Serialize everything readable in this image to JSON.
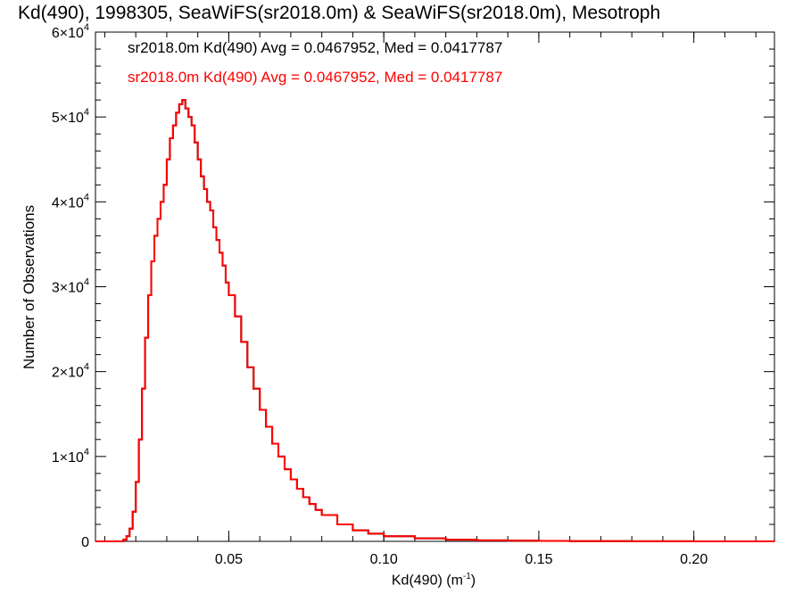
{
  "chart_data": {
    "type": "line",
    "title": "Kd(490), 1998305, SeaWiFS(sr2018.0m) & SeaWiFS(sr2018.0m), Mesotroph",
    "xlabel_base": "Kd(490) (m",
    "xlabel_exp": "-1",
    "xlabel_close": ")",
    "ylabel": "Number of Observations",
    "xlim": [
      0.007,
      0.226
    ],
    "ylim": [
      0,
      60000
    ],
    "x_ticks": [
      0.05,
      0.1,
      0.15,
      0.2
    ],
    "x_tick_labels": [
      "0.05",
      "0.10",
      "0.15",
      "0.20"
    ],
    "y_ticks": [
      0,
      10000,
      20000,
      30000,
      40000,
      50000,
      60000
    ],
    "y_tick_labels": [
      {
        "mantissa": "0",
        "exp": ""
      },
      {
        "mantissa": "1×10",
        "exp": "4"
      },
      {
        "mantissa": "2×10",
        "exp": "4"
      },
      {
        "mantissa": "3×10",
        "exp": "4"
      },
      {
        "mantissa": "4×10",
        "exp": "4"
      },
      {
        "mantissa": "5×10",
        "exp": "4"
      },
      {
        "mantissa": "6×10",
        "exp": "4"
      }
    ],
    "legend": [
      {
        "text": "sr2018.0m Kd(490) Avg = 0.0467952, Med = 0.0417787",
        "color": "#000000"
      },
      {
        "text": "sr2018.0m Kd(490) Avg = 0.0467952, Med = 0.0417787",
        "color": "#ff0000"
      }
    ],
    "series": [
      {
        "color": "#000000",
        "style": "step",
        "x": [
          0.007,
          0.016,
          0.017,
          0.018,
          0.019,
          0.02,
          0.021,
          0.022,
          0.023,
          0.024,
          0.025,
          0.026,
          0.027,
          0.028,
          0.029,
          0.03,
          0.031,
          0.032,
          0.033,
          0.034,
          0.035,
          0.036,
          0.037,
          0.038,
          0.039,
          0.04,
          0.041,
          0.042,
          0.043,
          0.044,
          0.045,
          0.046,
          0.047,
          0.048,
          0.049,
          0.05,
          0.052,
          0.054,
          0.056,
          0.058,
          0.06,
          0.062,
          0.064,
          0.066,
          0.068,
          0.07,
          0.072,
          0.074,
          0.076,
          0.078,
          0.08,
          0.085,
          0.09,
          0.095,
          0.1,
          0.11,
          0.12,
          0.13,
          0.14,
          0.15,
          0.16,
          0.18,
          0.2,
          0.226
        ],
        "y": [
          0,
          200,
          600,
          1500,
          3500,
          7000,
          12000,
          18000,
          24000,
          29000,
          33000,
          36000,
          38000,
          40000,
          42000,
          45000,
          47500,
          49000,
          50500,
          51500,
          52000,
          51000,
          50000,
          49000,
          47000,
          45000,
          43000,
          41500,
          40000,
          39000,
          37000,
          35500,
          34000,
          32500,
          30500,
          29000,
          26500,
          23500,
          20500,
          18000,
          15500,
          13500,
          11500,
          10000,
          8500,
          7300,
          6200,
          5200,
          4400,
          3700,
          3100,
          2000,
          1300,
          900,
          600,
          350,
          200,
          120,
          80,
          50,
          30,
          15,
          5,
          0
        ]
      },
      {
        "color": "#ff0000",
        "style": "step",
        "x": [
          0.007,
          0.016,
          0.017,
          0.018,
          0.019,
          0.02,
          0.021,
          0.022,
          0.023,
          0.024,
          0.025,
          0.026,
          0.027,
          0.028,
          0.029,
          0.03,
          0.031,
          0.032,
          0.033,
          0.034,
          0.035,
          0.036,
          0.037,
          0.038,
          0.039,
          0.04,
          0.041,
          0.042,
          0.043,
          0.044,
          0.045,
          0.046,
          0.047,
          0.048,
          0.049,
          0.05,
          0.052,
          0.054,
          0.056,
          0.058,
          0.06,
          0.062,
          0.064,
          0.066,
          0.068,
          0.07,
          0.072,
          0.074,
          0.076,
          0.078,
          0.08,
          0.085,
          0.09,
          0.095,
          0.1,
          0.11,
          0.12,
          0.13,
          0.14,
          0.15,
          0.16,
          0.18,
          0.2,
          0.226
        ],
        "y": [
          0,
          200,
          600,
          1500,
          3500,
          7000,
          12000,
          18000,
          24000,
          29000,
          33000,
          36000,
          38000,
          40000,
          42000,
          45000,
          47500,
          49000,
          50500,
          51500,
          52000,
          51000,
          50000,
          49000,
          47000,
          45000,
          43000,
          41500,
          40000,
          39000,
          37000,
          35500,
          34000,
          32500,
          30500,
          29000,
          26500,
          23500,
          20500,
          18000,
          15500,
          13500,
          11500,
          10000,
          8500,
          7300,
          6200,
          5200,
          4400,
          3700,
          3100,
          2000,
          1300,
          900,
          600,
          350,
          200,
          120,
          80,
          50,
          30,
          15,
          5,
          0
        ]
      }
    ],
    "grid": false,
    "legend_position": "top-left"
  }
}
